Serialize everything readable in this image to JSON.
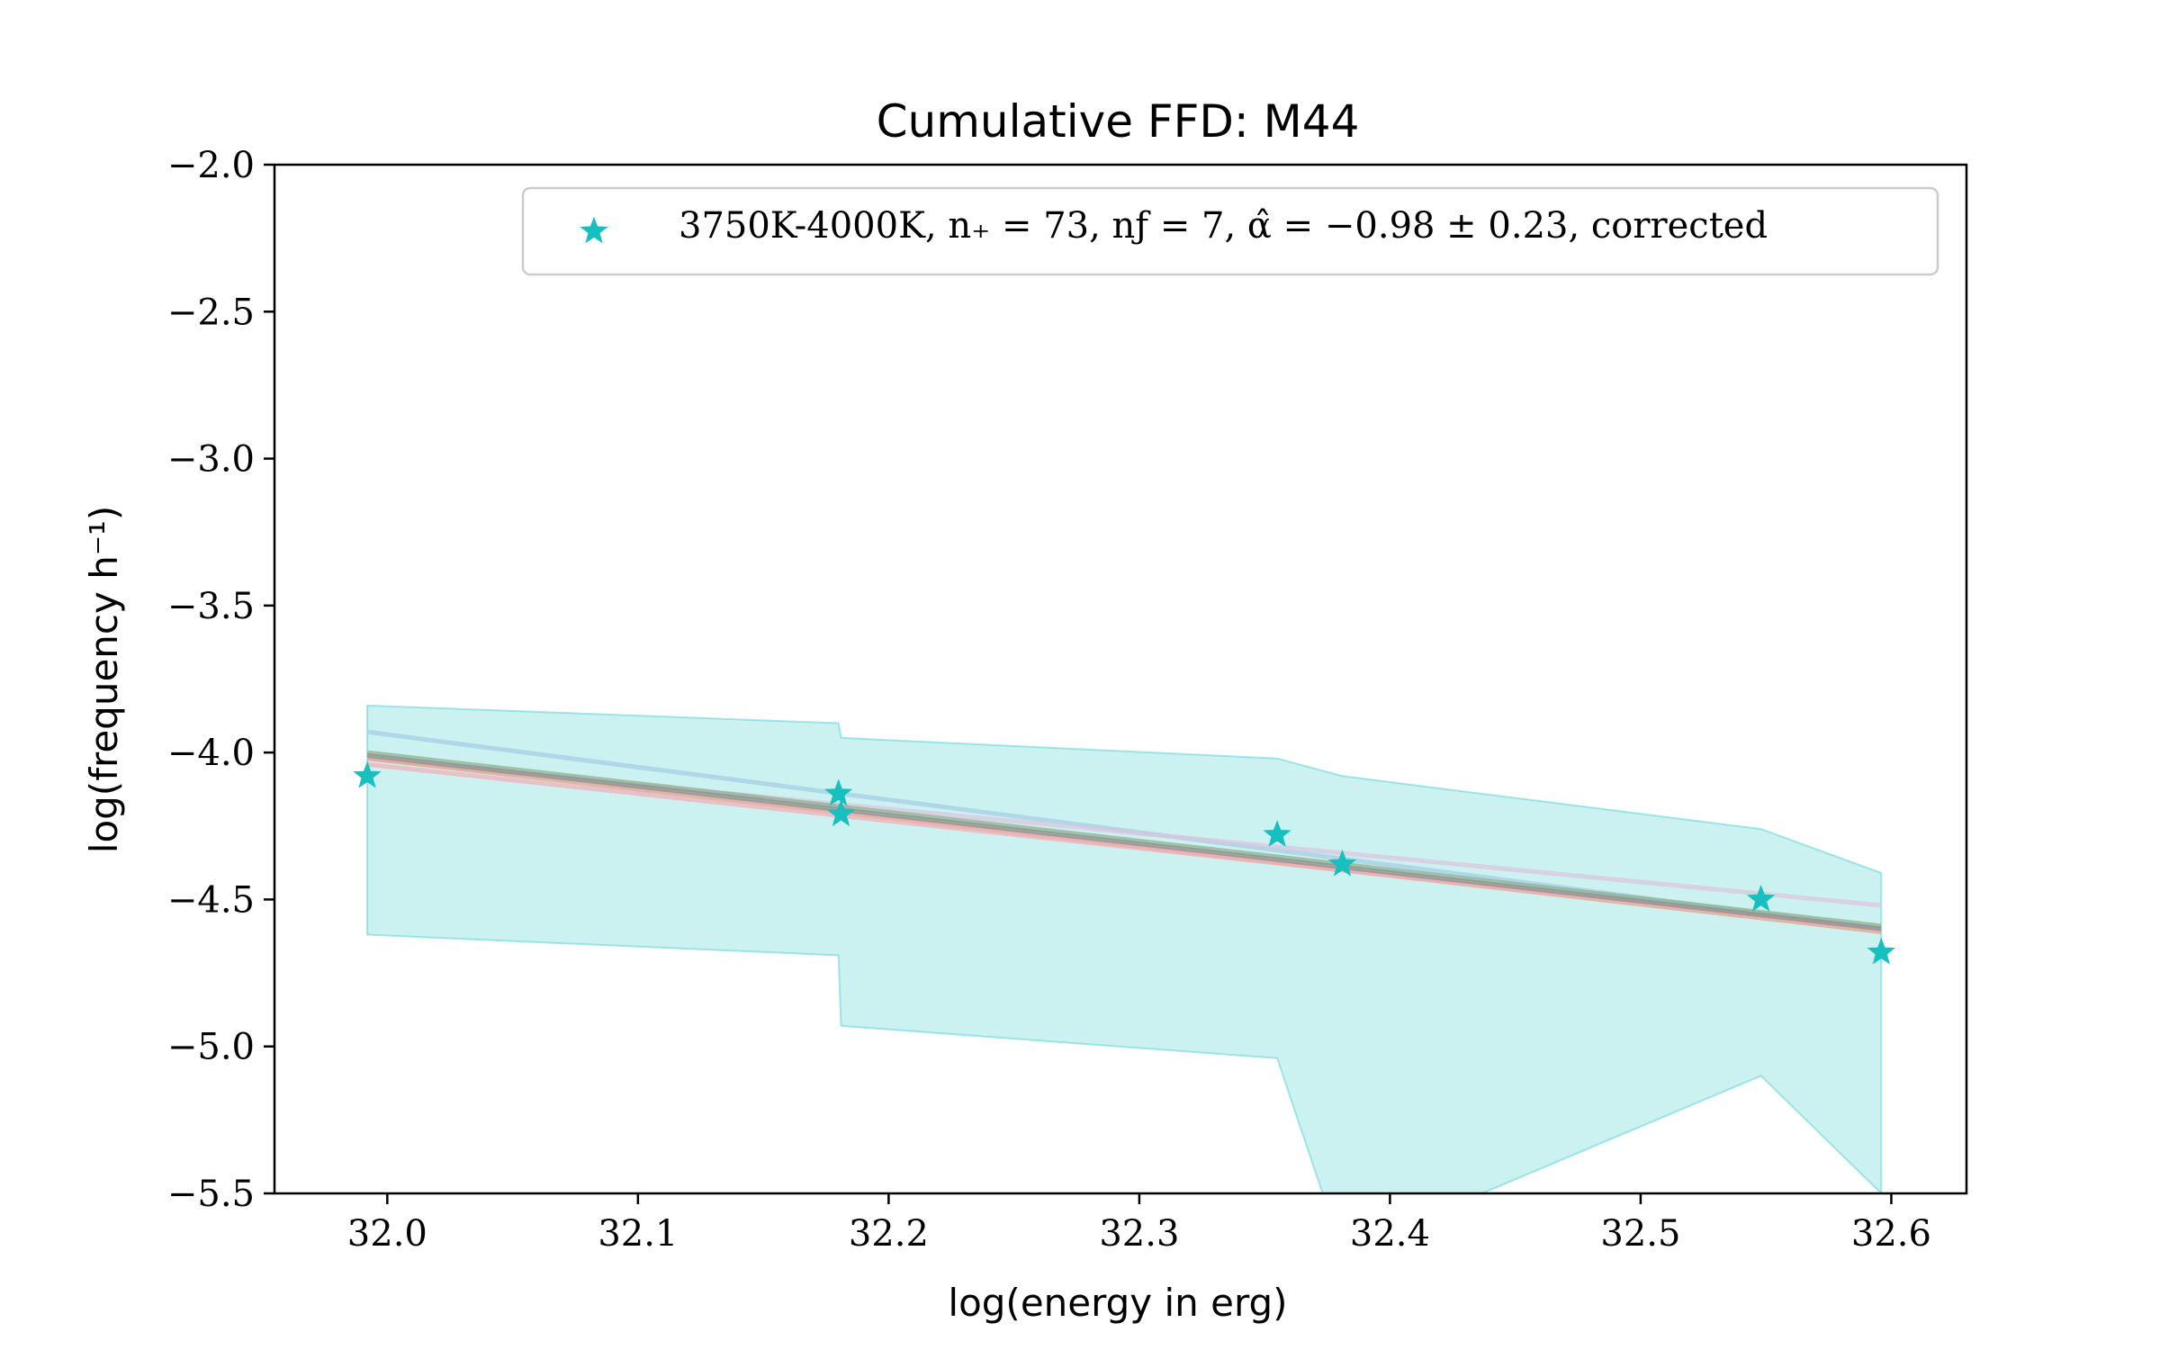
{
  "chart_data": {
    "type": "scatter",
    "title": "Cumulative FFD: M44",
    "xlabel": "log(energy in erg)",
    "ylabel": "log(frequency h⁻¹)",
    "xlim": [
      31.955,
      32.63
    ],
    "ylim": [
      -5.5,
      -2.0
    ],
    "xticks": [
      "32.0",
      "32.1",
      "32.2",
      "32.3",
      "32.4",
      "32.5",
      "32.6"
    ],
    "yticks": [
      "−2.0",
      "−2.5",
      "−3.0",
      "−3.5",
      "−4.0",
      "−4.5",
      "−5.0",
      "−5.5"
    ],
    "grid": false,
    "legend_position": "top-right",
    "legend_label": "3750K-4000K, n₊ = 73, nƒ = 7, α̂ = −0.98 ± 0.23, corrected",
    "series": [
      {
        "name": "3750K-4000K, n* = 73, nf = 7, alpha = -0.98 ± 0.23, corrected",
        "marker": "star",
        "color": "#17bfbf",
        "x": [
          31.992,
          32.18,
          32.181,
          32.355,
          32.381,
          32.548,
          32.596
        ],
        "y": [
          -4.08,
          -4.14,
          -4.21,
          -4.28,
          -4.38,
          -4.5,
          -4.68
        ]
      }
    ],
    "uncertainty_band": {
      "color": "#17bfbf",
      "x": [
        31.992,
        32.18,
        32.181,
        32.355,
        32.381,
        32.548,
        32.596
      ],
      "upper": [
        -3.84,
        -3.9,
        -3.95,
        -4.02,
        -4.08,
        -4.26,
        -4.41
      ],
      "lower": [
        -4.62,
        -4.69,
        -4.93,
        -5.04,
        -5.7,
        -5.1,
        -5.5
      ]
    },
    "fit_lines": [
      {
        "color": "#a6cde3",
        "x": [
          31.992,
          32.596
        ],
        "y": [
          -3.93,
          -4.6
        ]
      },
      {
        "color": "#dcc4de",
        "x": [
          31.992,
          32.596
        ],
        "y": [
          -4.02,
          -4.52
        ]
      },
      {
        "color": "#e6a088",
        "x": [
          31.992,
          32.596
        ],
        "y": [
          -4.02,
          -4.61
        ]
      },
      {
        "color": "#f0b0b8",
        "x": [
          31.992,
          32.596
        ],
        "y": [
          -4.04,
          -4.6
        ]
      },
      {
        "color": "#8fb08f",
        "x": [
          31.992,
          32.596
        ],
        "y": [
          -4.0,
          -4.59
        ]
      },
      {
        "color": "#8e8e8e",
        "x": [
          31.992,
          32.596
        ],
        "y": [
          -4.01,
          -4.6
        ]
      }
    ]
  }
}
